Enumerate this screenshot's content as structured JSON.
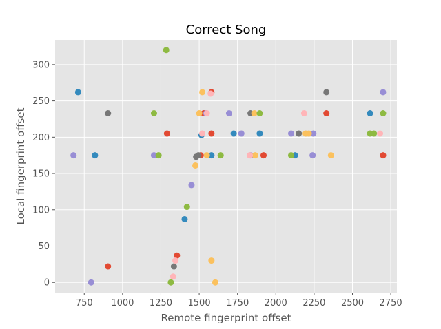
{
  "chart_data": {
    "type": "scatter",
    "title": "Correct Song",
    "xlabel": "Remote fingerprint offset",
    "ylabel": "Local fingerprint offset",
    "xlim": [
      560,
      2790
    ],
    "ylim": [
      -14,
      334
    ],
    "xticks": [
      750,
      1000,
      1250,
      1500,
      1750,
      2000,
      2250,
      2500,
      2750
    ],
    "yticks": [
      0,
      50,
      100,
      150,
      200,
      250,
      300
    ],
    "grid": true,
    "background": "#E5E5E5",
    "grid_color": "#FFFFFF",
    "series": [
      {
        "color": "#E24A33",
        "points": [
          [
            905,
            22
          ],
          [
            1290,
            205
          ],
          [
            1355,
            37
          ],
          [
            1510,
            175
          ],
          [
            1530,
            233
          ],
          [
            1580,
            262
          ],
          [
            1580,
            205
          ],
          [
            1920,
            175
          ],
          [
            2330,
            233
          ],
          [
            2700,
            175
          ]
        ]
      },
      {
        "color": "#348ABD",
        "points": [
          [
            710,
            262
          ],
          [
            820,
            175
          ],
          [
            1405,
            87
          ],
          [
            1515,
            203
          ],
          [
            1580,
            175
          ],
          [
            1725,
            205
          ],
          [
            1895,
            205
          ],
          [
            2125,
            175
          ],
          [
            2615,
            233
          ]
        ]
      },
      {
        "color": "#988ED5",
        "points": [
          [
            680,
            175
          ],
          [
            795,
            0
          ],
          [
            1205,
            175
          ],
          [
            1450,
            134
          ],
          [
            1545,
            233
          ],
          [
            1695,
            233
          ],
          [
            1775,
            205
          ],
          [
            1835,
            175
          ],
          [
            2100,
            205
          ],
          [
            2240,
            175
          ],
          [
            2245,
            205
          ],
          [
            2700,
            262
          ]
        ]
      },
      {
        "color": "#777777",
        "points": [
          [
            905,
            233
          ],
          [
            1335,
            22
          ],
          [
            1480,
            173
          ],
          [
            1495,
            175
          ],
          [
            1835,
            233
          ],
          [
            2150,
            205
          ],
          [
            2330,
            262
          ]
        ]
      },
      {
        "color": "#FBC15E",
        "points": [
          [
            1475,
            161
          ],
          [
            1500,
            233
          ],
          [
            1520,
            262
          ],
          [
            1550,
            175
          ],
          [
            1580,
            30
          ],
          [
            1605,
            0
          ],
          [
            1860,
            233
          ],
          [
            1865,
            175
          ],
          [
            2195,
            205
          ],
          [
            2215,
            205
          ],
          [
            2360,
            175
          ]
        ]
      },
      {
        "color": "#8EBA42",
        "points": [
          [
            1205,
            233
          ],
          [
            1235,
            175
          ],
          [
            1285,
            320
          ],
          [
            1315,
            0
          ],
          [
            1420,
            104
          ],
          [
            1640,
            175
          ],
          [
            1895,
            233
          ],
          [
            2100,
            175
          ],
          [
            2615,
            205
          ],
          [
            2640,
            205
          ],
          [
            2700,
            233
          ]
        ]
      },
      {
        "color": "#FFB5B8",
        "points": [
          [
            1330,
            8
          ],
          [
            1345,
            30
          ],
          [
            1520,
            205
          ],
          [
            1550,
            233
          ],
          [
            1575,
            260
          ],
          [
            1830,
            175
          ],
          [
            2185,
            233
          ],
          [
            2680,
            205
          ]
        ]
      }
    ]
  }
}
